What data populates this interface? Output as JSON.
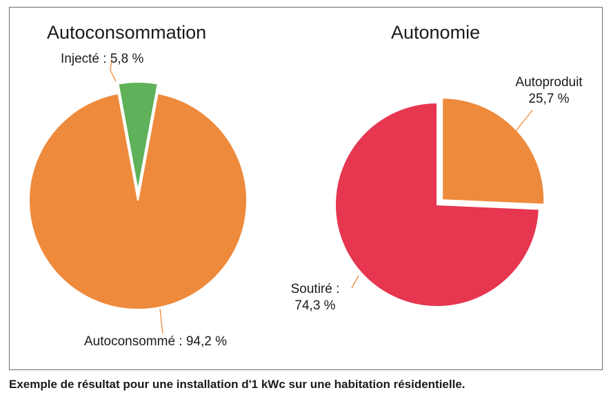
{
  "chart_data": [
    {
      "type": "pie",
      "title": "Autoconsommation",
      "slices": [
        {
          "label": "Injecté",
          "value": 5.8,
          "display": "5,8 %",
          "color": "#5fb15a",
          "exploded": true
        },
        {
          "label": "Autoconsommé",
          "value": 94.2,
          "display": "94,2 %",
          "color": "#ee8a3c",
          "exploded": false
        }
      ],
      "label_text": [
        "Injecté : 5,8 %",
        "Autoconsommé : 94,2 %"
      ]
    },
    {
      "type": "pie",
      "title": "Autonomie",
      "slices": [
        {
          "label": "Autoproduit",
          "value": 25.7,
          "display": "25,7 %",
          "color": "#ee8a3c",
          "exploded": true
        },
        {
          "label": "Soutiré",
          "value": 74.3,
          "display": "74,3 %",
          "color": "#e63650",
          "exploded": false
        }
      ],
      "label_text": [
        [
          "Autoproduit",
          "25,7 %"
        ],
        [
          "Soutiré :",
          "74,3 %"
        ]
      ]
    }
  ],
  "caption": "Exemple de résultat pour une installation d'1 kWc sur une habitation résidentielle."
}
